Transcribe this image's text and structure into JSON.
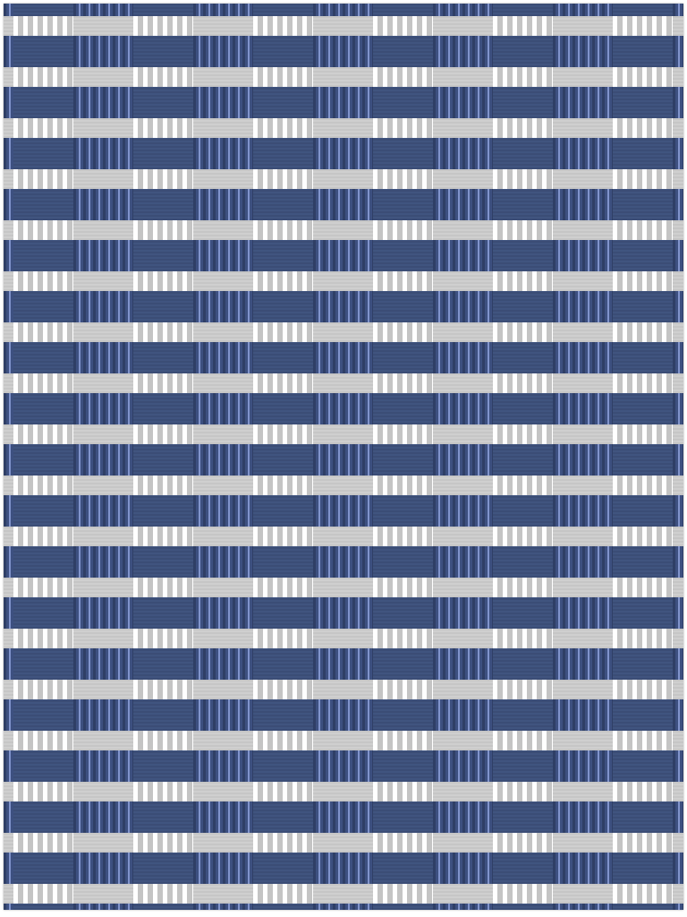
{
  "image": {
    "subject": "rug",
    "pattern": "woven-check",
    "colors": {
      "navy": "#3d5078",
      "navy_stripe_highlight": "#8194cc",
      "light_grey": "#c9c9c9",
      "white": "#ffffff"
    },
    "band_count_light": 18
  }
}
